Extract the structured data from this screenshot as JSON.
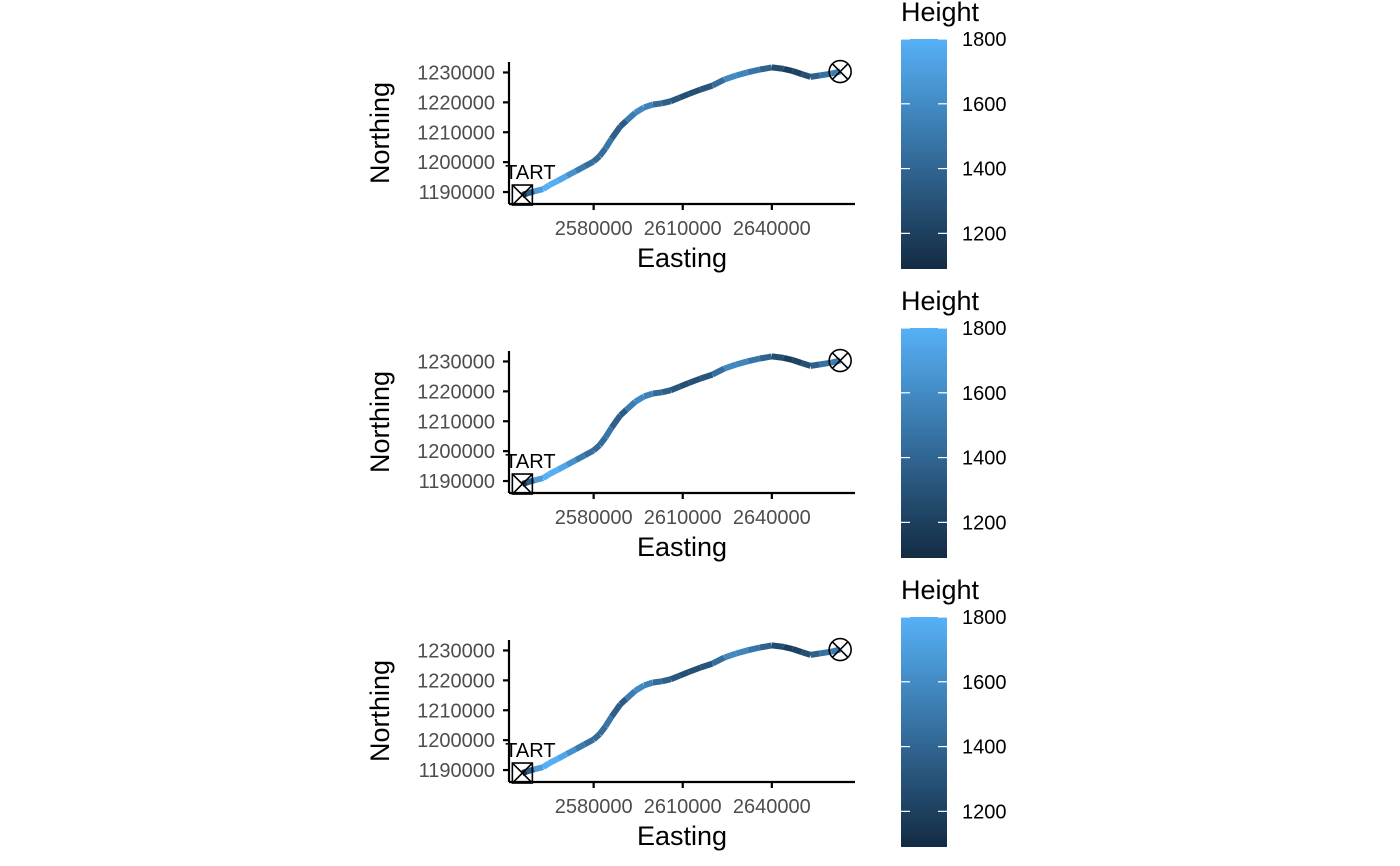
{
  "colors": {
    "low": "#132B43",
    "high": "#56B1F7",
    "axis": "#000000",
    "tick_text": "#4d4d4d",
    "legend_tick": "#ffffff"
  },
  "icons": {
    "start_marker": "square-cross-icon",
    "end_marker": "circle-cross-icon"
  },
  "chart_data": [
    {
      "type": "line",
      "xlabel": "Easting",
      "ylabel": "Northing",
      "xlim": [
        2551500,
        2668000
      ],
      "ylim": [
        1186000,
        1233500
      ],
      "x_ticks": [
        2580000,
        2610000,
        2640000
      ],
      "x_tick_labels": [
        "2580000",
        "2610000",
        "2640000"
      ],
      "y_ticks": [
        1190000,
        1200000,
        1210000,
        1220000,
        1230000
      ],
      "y_tick_labels": [
        "1190000",
        "1200000",
        "1210000",
        "1220000",
        "1230000"
      ],
      "grid": false,
      "legend": {
        "title": "Height",
        "position": "right",
        "type": "colorbar",
        "limits": [
          1090,
          1800
        ],
        "ticks": [
          1200,
          1400,
          1600,
          1800
        ],
        "tick_labels": [
          "1200",
          "1400",
          "1600",
          "1800"
        ]
      },
      "series": [
        {
          "x": [
            2556000,
            2557500,
            2560000,
            2563000,
            2565000,
            2568000,
            2571000,
            2574000,
            2577000,
            2580000,
            2582000,
            2584000,
            2586000,
            2589000,
            2591000,
            2594000,
            2597000,
            2600000,
            2603000,
            2606000,
            2609000,
            2612000,
            2616000,
            2620000,
            2624000,
            2628000,
            2632000,
            2636000,
            2640000,
            2644000,
            2647000,
            2650000,
            2653000,
            2656000,
            2660000,
            2663000
          ],
          "y": [
            1189000,
            1189500,
            1190200,
            1191000,
            1192300,
            1193800,
            1195400,
            1197000,
            1198600,
            1200200,
            1202000,
            1204600,
            1207800,
            1212000,
            1213800,
            1216500,
            1218300,
            1219300,
            1219700,
            1220400,
            1221600,
            1222800,
            1224300,
            1225600,
            1227600,
            1229000,
            1230100,
            1231000,
            1231700,
            1231200,
            1230500,
            1229500,
            1228500,
            1229000,
            1229600,
            1230300
          ],
          "height": [
            1150,
            1120,
            1600,
            1790,
            1790,
            1780,
            1700,
            1560,
            1460,
            1430,
            1420,
            1460,
            1520,
            1210,
            1480,
            1560,
            1620,
            1470,
            1380,
            1350,
            1290,
            1260,
            1300,
            1330,
            1560,
            1620,
            1520,
            1440,
            1330,
            1200,
            1170,
            1250,
            1320,
            1420,
            1500,
            1550
          ]
        }
      ],
      "annotations": [
        {
          "label": "TART",
          "marker": "square-cross",
          "x": 2556000,
          "y": 1189000
        },
        {
          "label": "",
          "marker": "circle-cross",
          "x": 2663000,
          "y": 1230300
        }
      ]
    },
    {
      "type": "line",
      "xlabel": "Easting",
      "ylabel": "Northing",
      "xlim": [
        2551500,
        2668000
      ],
      "ylim": [
        1186000,
        1233500
      ],
      "x_ticks": [
        2580000,
        2610000,
        2640000
      ],
      "x_tick_labels": [
        "2580000",
        "2610000",
        "2640000"
      ],
      "y_ticks": [
        1190000,
        1200000,
        1210000,
        1220000,
        1230000
      ],
      "y_tick_labels": [
        "1190000",
        "1200000",
        "1210000",
        "1220000",
        "1230000"
      ],
      "grid": false,
      "legend": {
        "title": "Height",
        "position": "right",
        "type": "colorbar",
        "limits": [
          1090,
          1800
        ],
        "ticks": [
          1200,
          1400,
          1600,
          1800
        ],
        "tick_labels": [
          "1200",
          "1400",
          "1600",
          "1800"
        ]
      },
      "series": [
        {
          "x": [
            2556000,
            2557500,
            2560000,
            2563000,
            2565000,
            2568000,
            2571000,
            2574000,
            2577000,
            2580000,
            2582000,
            2584000,
            2586000,
            2589000,
            2591000,
            2594000,
            2597000,
            2600000,
            2603000,
            2606000,
            2609000,
            2612000,
            2616000,
            2620000,
            2624000,
            2628000,
            2632000,
            2636000,
            2640000,
            2644000,
            2647000,
            2650000,
            2653000,
            2656000,
            2660000,
            2663000
          ],
          "y": [
            1189000,
            1189500,
            1190200,
            1191000,
            1192300,
            1193800,
            1195400,
            1197000,
            1198600,
            1200200,
            1202000,
            1204600,
            1207800,
            1212000,
            1213800,
            1216500,
            1218300,
            1219300,
            1219700,
            1220400,
            1221600,
            1222800,
            1224300,
            1225600,
            1227600,
            1229000,
            1230100,
            1231000,
            1231700,
            1231200,
            1230500,
            1229500,
            1228500,
            1229000,
            1229600,
            1230300
          ],
          "height": [
            1150,
            1120,
            1600,
            1790,
            1790,
            1780,
            1700,
            1560,
            1460,
            1430,
            1420,
            1460,
            1520,
            1210,
            1480,
            1560,
            1620,
            1470,
            1380,
            1350,
            1290,
            1260,
            1300,
            1330,
            1560,
            1620,
            1520,
            1440,
            1330,
            1200,
            1170,
            1250,
            1320,
            1420,
            1500,
            1550
          ]
        }
      ],
      "annotations": [
        {
          "label": "TART",
          "marker": "square-cross",
          "x": 2556000,
          "y": 1189000
        },
        {
          "label": "",
          "marker": "circle-cross",
          "x": 2663000,
          "y": 1230300
        }
      ]
    },
    {
      "type": "line",
      "xlabel": "Easting",
      "ylabel": "Northing",
      "xlim": [
        2551500,
        2668000
      ],
      "ylim": [
        1186000,
        1233500
      ],
      "x_ticks": [
        2580000,
        2610000,
        2640000
      ],
      "x_tick_labels": [
        "2580000",
        "2610000",
        "2640000"
      ],
      "y_ticks": [
        1190000,
        1200000,
        1210000,
        1220000,
        1230000
      ],
      "y_tick_labels": [
        "1190000",
        "1200000",
        "1210000",
        "1220000",
        "1230000"
      ],
      "grid": false,
      "legend": {
        "title": "Height",
        "position": "right",
        "type": "colorbar",
        "limits": [
          1090,
          1800
        ],
        "ticks": [
          1200,
          1400,
          1600,
          1800
        ],
        "tick_labels": [
          "1200",
          "1400",
          "1600",
          "1800"
        ]
      },
      "series": [
        {
          "x": [
            2556000,
            2557500,
            2560000,
            2563000,
            2565000,
            2568000,
            2571000,
            2574000,
            2577000,
            2580000,
            2582000,
            2584000,
            2586000,
            2589000,
            2591000,
            2594000,
            2597000,
            2600000,
            2603000,
            2606000,
            2609000,
            2612000,
            2616000,
            2620000,
            2624000,
            2628000,
            2632000,
            2636000,
            2640000,
            2644000,
            2647000,
            2650000,
            2653000,
            2656000,
            2660000,
            2663000
          ],
          "y": [
            1189000,
            1189500,
            1190200,
            1191000,
            1192300,
            1193800,
            1195400,
            1197000,
            1198600,
            1200200,
            1202000,
            1204600,
            1207800,
            1212000,
            1213800,
            1216500,
            1218300,
            1219300,
            1219700,
            1220400,
            1221600,
            1222800,
            1224300,
            1225600,
            1227600,
            1229000,
            1230100,
            1231000,
            1231700,
            1231200,
            1230500,
            1229500,
            1228500,
            1229000,
            1229600,
            1230300
          ],
          "height": [
            1150,
            1120,
            1600,
            1790,
            1790,
            1780,
            1700,
            1560,
            1460,
            1430,
            1420,
            1460,
            1520,
            1210,
            1480,
            1560,
            1620,
            1470,
            1380,
            1350,
            1290,
            1260,
            1300,
            1330,
            1560,
            1620,
            1520,
            1440,
            1330,
            1200,
            1170,
            1250,
            1320,
            1420,
            1500,
            1550
          ]
        }
      ],
      "annotations": [
        {
          "label": "TART",
          "marker": "square-cross",
          "x": 2556000,
          "y": 1189000
        },
        {
          "label": "",
          "marker": "circle-cross",
          "x": 2663000,
          "y": 1230300
        }
      ]
    }
  ]
}
